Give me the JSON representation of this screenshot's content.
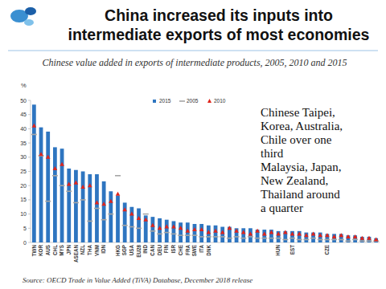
{
  "chart_data": {
    "type": "bar",
    "title": [
      "China increased its inputs into",
      "intermediate exports of most economies"
    ],
    "subtitle": "Chinese value added in exports of intermediate products, 2005, 2010 and 2015",
    "y_label": "%",
    "source": "Source: OECD Trade in Value Added (TiVA) Database, December 2018 release",
    "annotation": [
      "Chinese Taipei,",
      "Korea, Australia,",
      "Chile over one",
      "third",
      "Malaysia, Japan,",
      "New Zealand,",
      "Thailand around",
      "a quarter"
    ],
    "categories": [
      "TWN",
      "KOR",
      "AUS",
      "CHL",
      "MYS",
      "JPN",
      "ASEAN",
      "NZL",
      "THA",
      "VNM",
      "IDN",
      null,
      "HKG",
      "SGP",
      "USA",
      "EU28",
      "IND",
      "CAN",
      "DEU",
      "FIN",
      "ISR",
      "CHE",
      "FRA",
      "SWE",
      "ITA",
      "DNK",
      null,
      null,
      null,
      null,
      null,
      null,
      null,
      null,
      null,
      "HUN",
      null,
      "EST",
      null,
      null,
      null,
      null,
      "CZE",
      null,
      null,
      null,
      null,
      null,
      null,
      null
    ],
    "series": [
      {
        "name": "2015",
        "type": "bar",
        "color": "#2e75c0",
        "values": [
          48.5,
          40.5,
          39,
          33.5,
          33,
          26,
          25.5,
          25,
          24,
          24,
          21.5,
          18,
          16.5,
          14,
          12.5,
          12,
          9.5,
          9,
          8.5,
          8,
          7.5,
          7,
          7,
          6.5,
          6.5,
          6,
          6,
          5.5,
          5.5,
          5,
          5,
          5,
          4.5,
          4.5,
          4.5,
          4,
          4,
          4,
          4,
          3.5,
          3.5,
          3.5,
          3,
          3,
          3,
          2.5,
          2.5,
          2,
          2,
          1.5
        ]
      },
      {
        "name": "2005",
        "type": "scatter",
        "marker": "dash",
        "color": "#a6a6a6",
        "values": [
          38,
          30.5,
          14.5,
          23.5,
          20,
          18,
          14,
          15,
          7.5,
          12,
          8,
          10,
          23.5,
          6,
          5.5,
          5,
          10,
          4,
          3,
          3.5,
          3,
          2.5,
          2.5,
          2.5,
          2,
          2,
          2,
          2,
          1.5,
          2,
          1.5,
          2,
          1.5,
          1.5,
          1.5,
          1.5,
          1,
          1.5,
          1,
          1,
          1.5,
          1,
          1,
          1,
          1,
          0.5,
          1,
          0.5,
          0.5,
          0.5
        ]
      },
      {
        "name": "2010",
        "type": "scatter",
        "marker": "triangle",
        "color": "#e0241b",
        "values": [
          41,
          31,
          30,
          26,
          27.5,
          20.5,
          21,
          19.5,
          20,
          14,
          13.5,
          14.5,
          17,
          11.5,
          10,
          8.5,
          8,
          6,
          5,
          5.5,
          5.5,
          5,
          4,
          4.5,
          4.5,
          3.5,
          4,
          3.5,
          5,
          4,
          3.5,
          3,
          4,
          3,
          3.5,
          3,
          3.5,
          3,
          3,
          2.5,
          3,
          2.5,
          2.5,
          2,
          2.5,
          2,
          2,
          1.5,
          1.5,
          1
        ]
      }
    ],
    "ylim": [
      0,
      50
    ],
    "yticks": [
      0,
      5,
      10,
      15,
      20,
      25,
      30,
      35,
      40,
      45,
      50
    ],
    "grid": false,
    "legend": "top"
  }
}
